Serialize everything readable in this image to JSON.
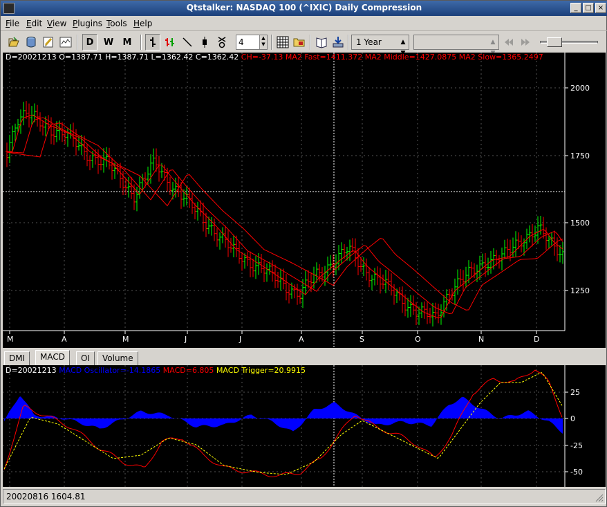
{
  "window": {
    "title": "Qtstalker: NASDAQ 100 (^IXIC) Daily Compression",
    "buttons": [
      "_",
      "□",
      "×"
    ]
  },
  "menu": [
    {
      "label": "File",
      "mnemonic": "F"
    },
    {
      "label": "Edit",
      "mnemonic": "E"
    },
    {
      "label": "View",
      "mnemonic": "V"
    },
    {
      "label": "Plugins",
      "mnemonic": "P"
    },
    {
      "label": "Tools",
      "mnemonic": "T"
    },
    {
      "label": "Help",
      "mnemonic": "H"
    }
  ],
  "toolbar": {
    "compression_buttons": [
      "D",
      "W",
      "M"
    ],
    "bar_spacing": "4",
    "range": "1 Year",
    "indicator_combo": ""
  },
  "main_chart": {
    "status": {
      "date": "D=20021213",
      "open": "O=1387.71",
      "high": "H=1387.71",
      "low": "L=1362.42",
      "close": "C=1362.42",
      "indicators": "CH=-37.13 MA2 Fast=1411.372 MA2 Middle=1427.0875 MA2 Slow=1365.2497"
    },
    "y_ticks": [
      "2000",
      "1750",
      "1500",
      "1250"
    ],
    "x_ticks": [
      "M",
      "A",
      "M",
      "J",
      "J",
      "A",
      "S",
      "O",
      "N",
      "D"
    ],
    "colors": {
      "up_bar": "#00ff00",
      "down_bar": "#ff0000",
      "ma": "#ff0000",
      "grid": "#ffffff"
    }
  },
  "tabs": [
    "DMI",
    "MACD",
    "OI",
    "Volume"
  ],
  "active_tab": "MACD",
  "macd_chart": {
    "status": {
      "date": "D=20021213",
      "oscillator": "MACD Oscillator=-14.1865",
      "macd": "MACD=6.805",
      "trigger": "MACD Trigger=20.9915"
    },
    "y_ticks": [
      "25",
      "0",
      "-25",
      "-50"
    ],
    "colors": {
      "oscillator": "#0000ff",
      "macd": "#ff0000",
      "trigger": "#ffff00"
    }
  },
  "statusbar": {
    "text": "20020816 1604.81"
  }
}
